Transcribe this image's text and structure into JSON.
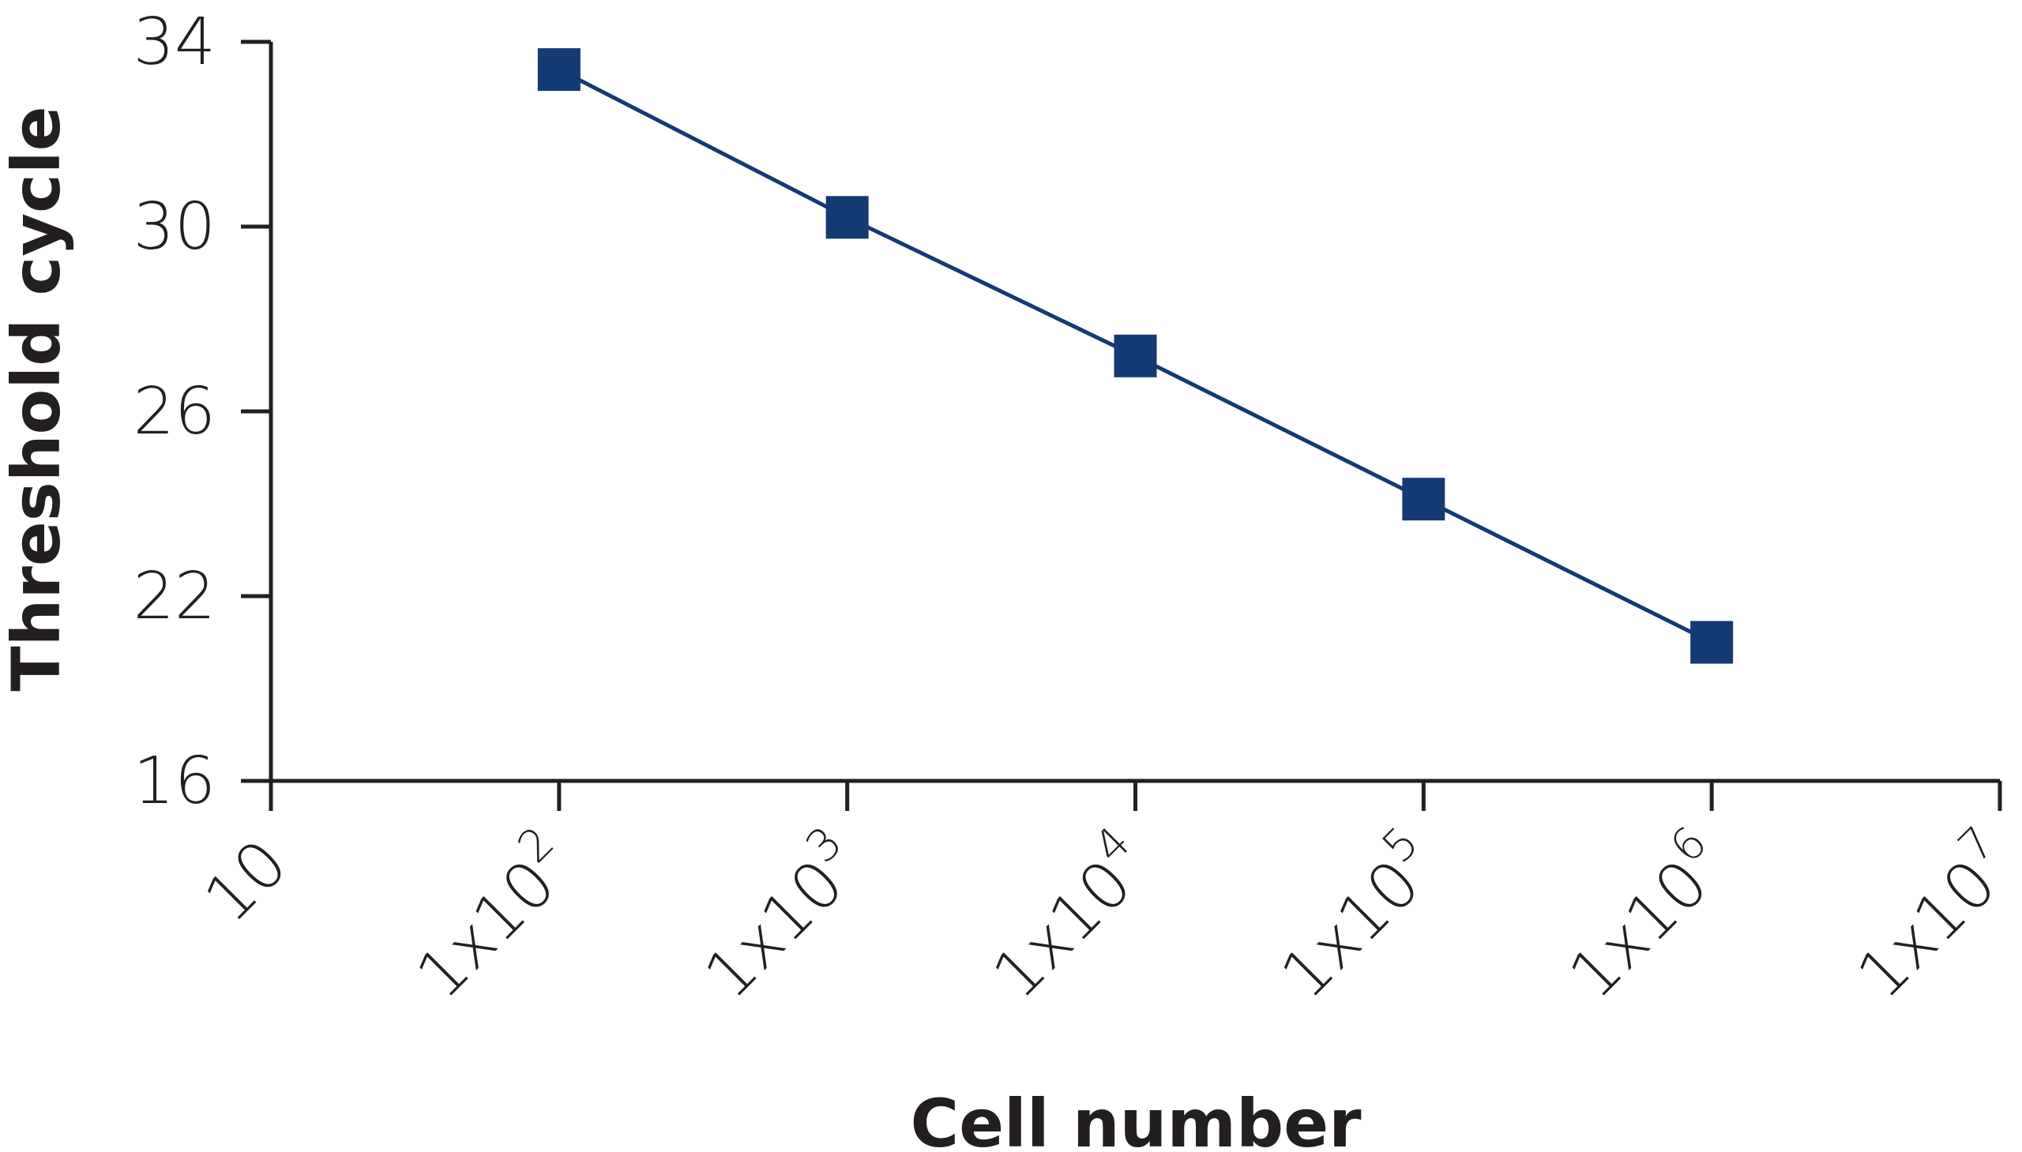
{
  "chart_data": {
    "type": "line",
    "title": "",
    "xlabel": "Cell number",
    "ylabel": "Threshold cycle",
    "x_scale": "log",
    "x_ticks": [
      {
        "value": 10,
        "base": "10",
        "exp": ""
      },
      {
        "value": 100,
        "base": "1x10",
        "exp": "2"
      },
      {
        "value": 1000,
        "base": "1x10",
        "exp": "3"
      },
      {
        "value": 10000,
        "base": "1x10",
        "exp": "4"
      },
      {
        "value": 100000,
        "base": "1x10",
        "exp": "5"
      },
      {
        "value": 1000000,
        "base": "1x10",
        "exp": "6"
      },
      {
        "value": 10000000,
        "base": "1x10",
        "exp": "7"
      }
    ],
    "y_ticks": [
      34,
      30,
      26,
      22,
      16
    ],
    "grid": false,
    "series": [
      {
        "name": "Threshold cycle",
        "color": "#133a73",
        "marker": "square",
        "x": [
          100,
          1000,
          10000,
          100000,
          1000000
        ],
        "y": [
          33.4,
          30.2,
          27.2,
          24.1,
          20.5
        ]
      }
    ]
  }
}
